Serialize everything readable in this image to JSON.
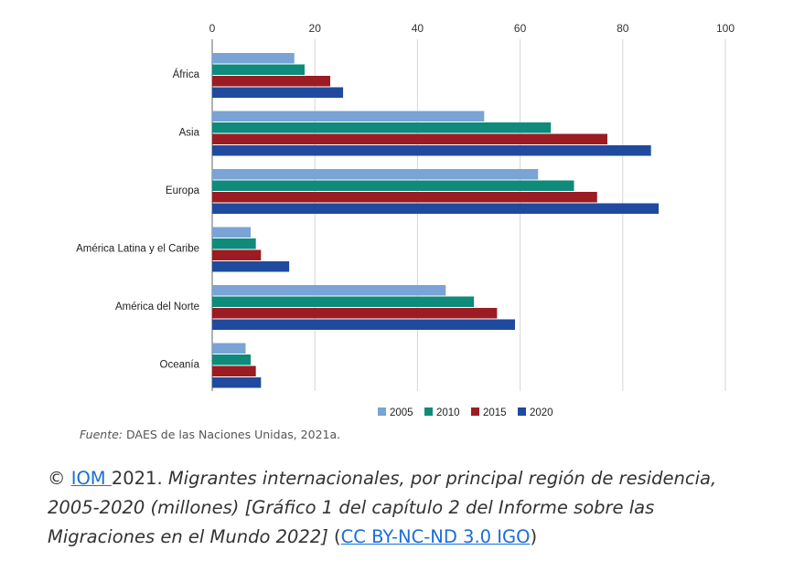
{
  "chart_data": {
    "type": "bar",
    "orientation": "horizontal",
    "categories": [
      "África",
      "Asia",
      "Europa",
      "América Latina y el Caribe",
      "América del Norte",
      "Oceanía"
    ],
    "series": [
      {
        "name": "2005",
        "color": "#7aa3d6",
        "values": [
          16,
          53,
          63.5,
          7.5,
          45.5,
          6.5
        ]
      },
      {
        "name": "2010",
        "color": "#0e8b7a",
        "values": [
          18,
          66,
          70.5,
          8.5,
          51,
          7.5
        ]
      },
      {
        "name": "2015",
        "color": "#9b1c22",
        "values": [
          23,
          77,
          75,
          9.5,
          55.5,
          8.5
        ]
      },
      {
        "name": "2020",
        "color": "#1f4a9e",
        "values": [
          25.5,
          85.5,
          87,
          15,
          59,
          9.5
        ]
      }
    ],
    "xlim": [
      0,
      100
    ],
    "xticks": [
      "0",
      "20",
      "40",
      "60",
      "80",
      "100"
    ],
    "xtick_values": [
      0,
      20,
      40,
      60,
      80,
      100
    ],
    "grid": true,
    "legend_position": "bottom"
  },
  "source": {
    "lead": "Fuente:",
    "text": " DAES de las Naciones Unidas, 2021a."
  },
  "caption": {
    "copyright": "© ",
    "link1": "IOM ",
    "year": "2021. ",
    "title": "Migrantes internacionales, por principal región de residencia, 2005-2020 (millones) [Gráfico 1 del capítulo 2 del Informe sobre las Migraciones en el Mundo 2022]",
    "open_paren": " (",
    "link2": "CC BY-NC-ND 3.0 IGO",
    "close_paren": ")"
  }
}
